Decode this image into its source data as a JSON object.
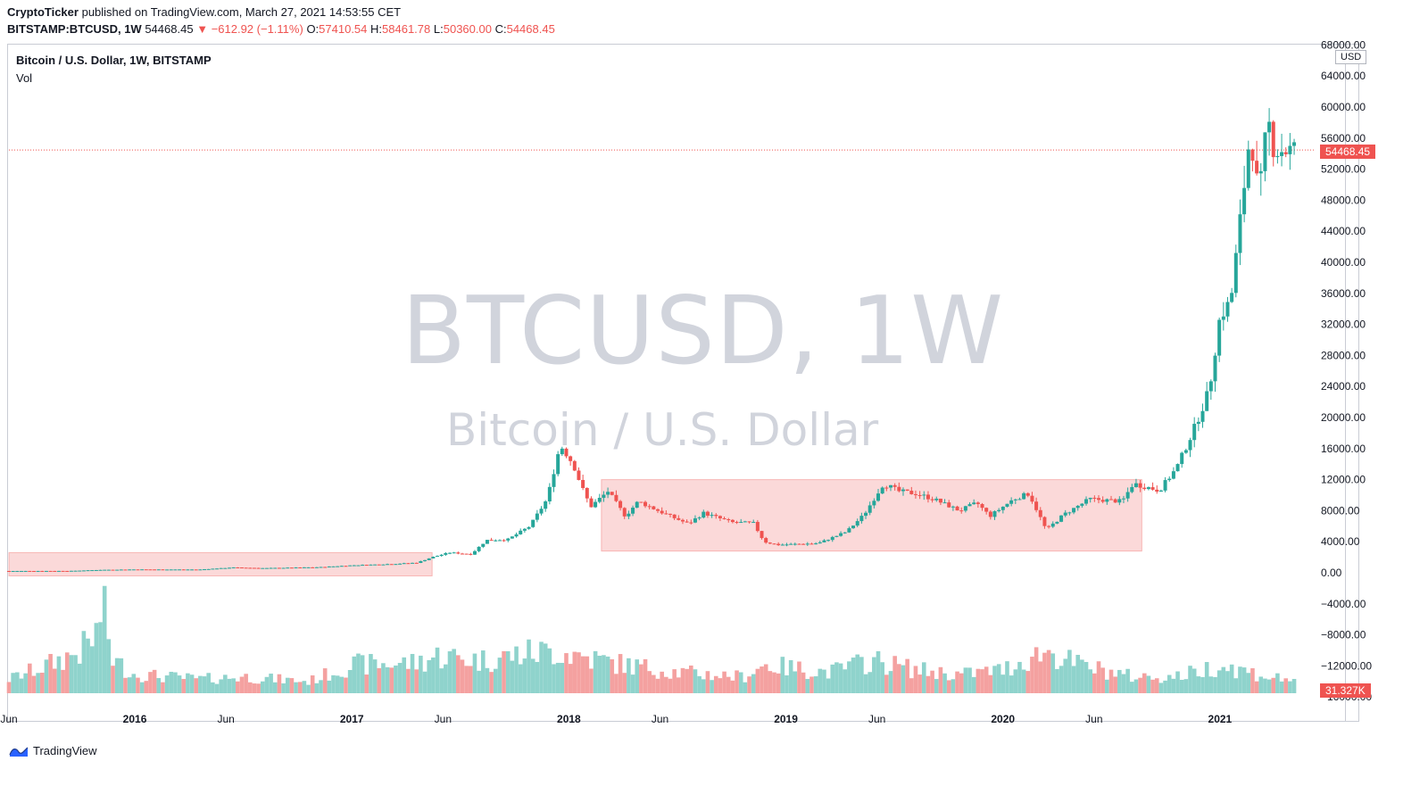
{
  "header": {
    "author": "CryptoTicker",
    "published": "published on TradingView.com, March 27, 2021 14:53:55 CET",
    "symbol": "BITSTAMP:BTCUSD, 1W",
    "last": "54468.45",
    "change": "−612.92 (−1.11%)",
    "open_label": "O:",
    "open": "57410.54",
    "high_label": "H:",
    "high": "58461.78",
    "low_label": "L:",
    "low": "50360.00",
    "close_label": "C:",
    "close": "54468.45"
  },
  "legend": {
    "title": "Bitcoin / U.S. Dollar, 1W, BITSTAMP",
    "volume": "Vol"
  },
  "watermark": {
    "main": "BTCUSD, 1W",
    "sub": "Bitcoin / U.S. Dollar"
  },
  "price_axis": {
    "currency": "USD",
    "last_price": "54468.45",
    "volume_value": "31.327K",
    "ticks": [
      "68000.00",
      "64000.00",
      "60000.00",
      "56000.00",
      "52000.00",
      "48000.00",
      "44000.00",
      "40000.00",
      "36000.00",
      "32000.00",
      "28000.00",
      "24000.00",
      "20000.00",
      "16000.00",
      "12000.00",
      "8000.00",
      "4000.00",
      "0.00",
      "−4000.00",
      "−8000.00",
      "−12000.00",
      "−16000.00"
    ]
  },
  "time_axis": {
    "labels": [
      {
        "t": 2015.42,
        "text": "Jun",
        "bold": false
      },
      {
        "t": 2016.0,
        "text": "2016",
        "bold": true
      },
      {
        "t": 2016.42,
        "text": "Jun",
        "bold": false
      },
      {
        "t": 2017.0,
        "text": "2017",
        "bold": true
      },
      {
        "t": 2017.42,
        "text": "Jun",
        "bold": false
      },
      {
        "t": 2018.0,
        "text": "2018",
        "bold": true
      },
      {
        "t": 2018.42,
        "text": "Jun",
        "bold": false
      },
      {
        "t": 2019.0,
        "text": "2019",
        "bold": true
      },
      {
        "t": 2019.42,
        "text": "Jun",
        "bold": false
      },
      {
        "t": 2020.0,
        "text": "2020",
        "bold": true
      },
      {
        "t": 2020.42,
        "text": "Jun",
        "bold": false
      },
      {
        "t": 2021.0,
        "text": "2021",
        "bold": true
      }
    ]
  },
  "footer": {
    "brand": "TradingView"
  },
  "colors": {
    "up": "#26a69a",
    "down": "#ef5350",
    "vol_up": "#8fd3cc",
    "vol_down": "#f4a1a0",
    "box": "rgba(239,83,80,0.22)",
    "box_edge": "rgba(239,83,80,0.35)"
  },
  "chart_data": {
    "type": "candlestick",
    "price_range": [
      -17000,
      70000
    ],
    "time_range": [
      2015.42,
      2021.35
    ],
    "annotations": [
      {
        "label": "",
        "t0": 2015.42,
        "t1": 2017.37,
        "p0": -400,
        "p1": 2600
      },
      {
        "label": "",
        "t0": 2018.15,
        "t1": 2020.64,
        "p0": 2800,
        "p1": 12000
      }
    ],
    "price_anchors": [
      [
        2015.42,
        230
      ],
      [
        2015.7,
        240
      ],
      [
        2015.85,
        380
      ],
      [
        2016.0,
        430
      ],
      [
        2016.3,
        420
      ],
      [
        2016.45,
        680
      ],
      [
        2016.6,
        600
      ],
      [
        2016.85,
        720
      ],
      [
        2017.0,
        960
      ],
      [
        2017.2,
        1150
      ],
      [
        2017.3,
        1300
      ],
      [
        2017.37,
        2000
      ],
      [
        2017.45,
        2600
      ],
      [
        2017.55,
        2400
      ],
      [
        2017.62,
        4200
      ],
      [
        2017.72,
        4300
      ],
      [
        2017.82,
        6000
      ],
      [
        2017.9,
        9500
      ],
      [
        2017.96,
        16500
      ],
      [
        2018.02,
        14000
      ],
      [
        2018.06,
        11000
      ],
      [
        2018.1,
        8500
      ],
      [
        2018.18,
        10500
      ],
      [
        2018.26,
        7300
      ],
      [
        2018.32,
        9200
      ],
      [
        2018.45,
        7500
      ],
      [
        2018.55,
        6300
      ],
      [
        2018.62,
        7700
      ],
      [
        2018.75,
        6500
      ],
      [
        2018.85,
        6400
      ],
      [
        2018.9,
        4000
      ],
      [
        2018.96,
        3600
      ],
      [
        2019.15,
        3800
      ],
      [
        2019.28,
        5300
      ],
      [
        2019.36,
        7500
      ],
      [
        2019.45,
        11500
      ],
      [
        2019.52,
        10500
      ],
      [
        2019.6,
        10200
      ],
      [
        2019.68,
        9500
      ],
      [
        2019.8,
        8000
      ],
      [
        2019.88,
        9000
      ],
      [
        2019.94,
        7300
      ],
      [
        2020.05,
        9500
      ],
      [
        2020.12,
        10200
      ],
      [
        2020.2,
        5500
      ],
      [
        2020.28,
        7500
      ],
      [
        2020.4,
        9500
      ],
      [
        2020.55,
        9200
      ],
      [
        2020.6,
        11500
      ],
      [
        2020.72,
        10600
      ],
      [
        2020.8,
        13500
      ],
      [
        2020.88,
        18500
      ],
      [
        2020.95,
        23500
      ],
      [
        2021.0,
        33000
      ],
      [
        2021.05,
        35000
      ],
      [
        2021.1,
        47000
      ],
      [
        2021.14,
        57000
      ],
      [
        2021.18,
        48000
      ],
      [
        2021.22,
        58500
      ],
      [
        2021.25,
        54468
      ]
    ],
    "volume_anchors": [
      [
        2015.42,
        3000
      ],
      [
        2015.6,
        6000
      ],
      [
        2015.75,
        9000
      ],
      [
        2015.82,
        12000
      ],
      [
        2015.85,
        19000
      ],
      [
        2015.9,
        7000
      ],
      [
        2016.0,
        4000
      ],
      [
        2016.3,
        3000
      ],
      [
        2016.5,
        3500
      ],
      [
        2016.8,
        2500
      ],
      [
        2017.0,
        6000
      ],
      [
        2017.3,
        6500
      ],
      [
        2017.4,
        8000
      ],
      [
        2017.6,
        7000
      ],
      [
        2017.8,
        8500
      ],
      [
        2017.95,
        9000
      ],
      [
        2018.05,
        8000
      ],
      [
        2018.2,
        6500
      ],
      [
        2018.5,
        4500
      ],
      [
        2018.8,
        3500
      ],
      [
        2018.9,
        6000
      ],
      [
        2019.2,
        4500
      ],
      [
        2019.4,
        7000
      ],
      [
        2019.6,
        5000
      ],
      [
        2019.8,
        4000
      ],
      [
        2020.0,
        5000
      ],
      [
        2020.2,
        9000
      ],
      [
        2020.35,
        6000
      ],
      [
        2020.6,
        3500
      ],
      [
        2020.8,
        3500
      ],
      [
        2021.0,
        6000
      ],
      [
        2021.25,
        3200
      ]
    ]
  }
}
